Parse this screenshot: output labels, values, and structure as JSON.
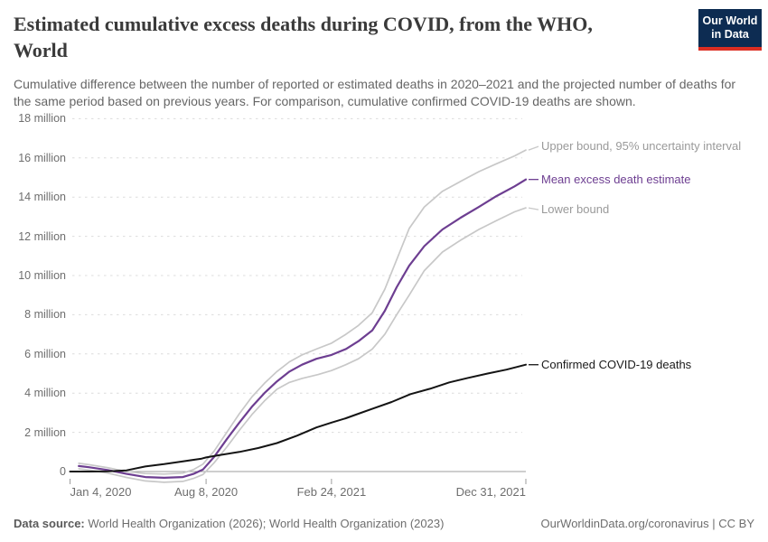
{
  "header": {
    "title": "Estimated cumulative excess deaths during COVID, from the WHO, World",
    "subtitle": "Cumulative difference between the number of reported or estimated deaths in 2020–2021 and the projected number of deaths for the same period based on previous years. For comparison, cumulative confirmed COVID-19 deaths are shown."
  },
  "logo": {
    "line1": "Our World",
    "line2": "in Data",
    "bg_color": "#0d2c52",
    "accent_color": "#dc2e22"
  },
  "footer": {
    "source_label": "Data source:",
    "source_text": " World Health Organization (2026); World Health Organization (2023)",
    "credit": "OurWorldinData.org/coronavirus | CC BY"
  },
  "chart_data": {
    "type": "line",
    "title": "Estimated cumulative excess deaths during COVID, from the WHO, World",
    "xlabel": "",
    "ylabel": "",
    "grid": "dashed-horizontal",
    "legend_position": "line-end-labels",
    "x_axis": {
      "unit": "date",
      "total_days": 727,
      "range": [
        "Jan 4, 2020",
        "Dec 31, 2021"
      ],
      "ticks": [
        {
          "label": "Jan 4, 2020",
          "day": 0
        },
        {
          "label": "Aug 8, 2020",
          "day": 217
        },
        {
          "label": "Feb 24, 2021",
          "day": 417
        },
        {
          "label": "Dec 31, 2021",
          "day": 727
        }
      ]
    },
    "y_axis": {
      "unit": "deaths",
      "ylim": [
        -0.7,
        18
      ],
      "ticks": [
        {
          "label": "0",
          "value": 0
        },
        {
          "label": "2 million",
          "value": 2
        },
        {
          "label": "4 million",
          "value": 4
        },
        {
          "label": "6 million",
          "value": 6
        },
        {
          "label": "8 million",
          "value": 8
        },
        {
          "label": "10 million",
          "value": 10
        },
        {
          "label": "12 million",
          "value": 12
        },
        {
          "label": "14 million",
          "value": 14
        },
        {
          "label": "16 million",
          "value": 16
        },
        {
          "label": "18 million",
          "value": 18
        }
      ]
    },
    "series": [
      {
        "name": "upper-bound",
        "label": "Upper bound, 95% uncertainty interval",
        "color": "#c8c8c8",
        "label_color": "#9a9a9a",
        "end_value_millions": 16.4,
        "points": [
          [
            14,
            0.42
          ],
          [
            30,
            0.35
          ],
          [
            60,
            0.2
          ],
          [
            90,
            0.0
          ],
          [
            120,
            -0.1
          ],
          [
            150,
            -0.13
          ],
          [
            180,
            -0.08
          ],
          [
            197,
            0.1
          ],
          [
            212,
            0.38
          ],
          [
            230,
            1.05
          ],
          [
            250,
            2.0
          ],
          [
            270,
            2.95
          ],
          [
            290,
            3.8
          ],
          [
            310,
            4.5
          ],
          [
            330,
            5.1
          ],
          [
            350,
            5.6
          ],
          [
            370,
            5.95
          ],
          [
            393,
            6.25
          ],
          [
            417,
            6.55
          ],
          [
            440,
            7.0
          ],
          [
            460,
            7.45
          ],
          [
            482,
            8.1
          ],
          [
            502,
            9.3
          ],
          [
            521,
            10.8
          ],
          [
            541,
            12.4
          ],
          [
            565,
            13.5
          ],
          [
            594,
            14.3
          ],
          [
            623,
            14.8
          ],
          [
            652,
            15.3
          ],
          [
            680,
            15.7
          ],
          [
            709,
            16.1
          ],
          [
            727,
            16.4
          ]
        ]
      },
      {
        "name": "lower-bound",
        "label": "Lower bound",
        "color": "#c8c8c8",
        "label_color": "#9a9a9a",
        "end_value_millions": 13.45,
        "points": [
          [
            14,
            0.14
          ],
          [
            30,
            0.08
          ],
          [
            60,
            -0.08
          ],
          [
            90,
            -0.3
          ],
          [
            120,
            -0.48
          ],
          [
            150,
            -0.55
          ],
          [
            180,
            -0.5
          ],
          [
            197,
            -0.35
          ],
          [
            212,
            -0.15
          ],
          [
            230,
            0.45
          ],
          [
            250,
            1.25
          ],
          [
            270,
            2.1
          ],
          [
            290,
            2.9
          ],
          [
            310,
            3.6
          ],
          [
            330,
            4.2
          ],
          [
            350,
            4.55
          ],
          [
            370,
            4.75
          ],
          [
            396,
            4.95
          ],
          [
            417,
            5.15
          ],
          [
            440,
            5.45
          ],
          [
            460,
            5.75
          ],
          [
            482,
            6.25
          ],
          [
            502,
            7.0
          ],
          [
            521,
            8.0
          ],
          [
            541,
            9.0
          ],
          [
            565,
            10.25
          ],
          [
            594,
            11.2
          ],
          [
            623,
            11.8
          ],
          [
            652,
            12.35
          ],
          [
            680,
            12.8
          ],
          [
            709,
            13.25
          ],
          [
            727,
            13.45
          ]
        ]
      },
      {
        "name": "mean-excess-deaths",
        "label": "Mean excess death estimate",
        "color": "#6d3e91",
        "label_color": "#6d3e91",
        "end_value_millions": 14.9,
        "points": [
          [
            14,
            0.28
          ],
          [
            30,
            0.22
          ],
          [
            60,
            0.08
          ],
          [
            90,
            -0.12
          ],
          [
            120,
            -0.28
          ],
          [
            150,
            -0.32
          ],
          [
            180,
            -0.28
          ],
          [
            197,
            -0.12
          ],
          [
            212,
            0.1
          ],
          [
            230,
            0.75
          ],
          [
            250,
            1.65
          ],
          [
            270,
            2.5
          ],
          [
            290,
            3.3
          ],
          [
            310,
            4.0
          ],
          [
            330,
            4.6
          ],
          [
            350,
            5.1
          ],
          [
            370,
            5.45
          ],
          [
            393,
            5.75
          ],
          [
            417,
            5.95
          ],
          [
            440,
            6.25
          ],
          [
            460,
            6.65
          ],
          [
            482,
            7.2
          ],
          [
            502,
            8.2
          ],
          [
            521,
            9.4
          ],
          [
            541,
            10.5
          ],
          [
            565,
            11.5
          ],
          [
            594,
            12.35
          ],
          [
            623,
            12.95
          ],
          [
            652,
            13.5
          ],
          [
            680,
            14.05
          ],
          [
            709,
            14.55
          ],
          [
            727,
            14.9
          ]
        ]
      },
      {
        "name": "confirmed-covid-deaths",
        "label": "Confirmed COVID-19 deaths",
        "color": "#141414",
        "label_color": "#1a1a1a",
        "end_value_millions": 5.45,
        "points": [
          [
            0,
            0.0
          ],
          [
            30,
            0.0
          ],
          [
            60,
            0.01
          ],
          [
            90,
            0.06
          ],
          [
            120,
            0.26
          ],
          [
            150,
            0.38
          ],
          [
            180,
            0.52
          ],
          [
            210,
            0.66
          ],
          [
            217,
            0.72
          ],
          [
            240,
            0.85
          ],
          [
            270,
            1.0
          ],
          [
            300,
            1.2
          ],
          [
            330,
            1.45
          ],
          [
            362,
            1.83
          ],
          [
            393,
            2.25
          ],
          [
            417,
            2.5
          ],
          [
            440,
            2.72
          ],
          [
            460,
            2.95
          ],
          [
            482,
            3.2
          ],
          [
            513,
            3.55
          ],
          [
            543,
            3.95
          ],
          [
            574,
            4.22
          ],
          [
            605,
            4.55
          ],
          [
            635,
            4.78
          ],
          [
            666,
            5.0
          ],
          [
            696,
            5.2
          ],
          [
            727,
            5.45
          ]
        ]
      }
    ]
  }
}
